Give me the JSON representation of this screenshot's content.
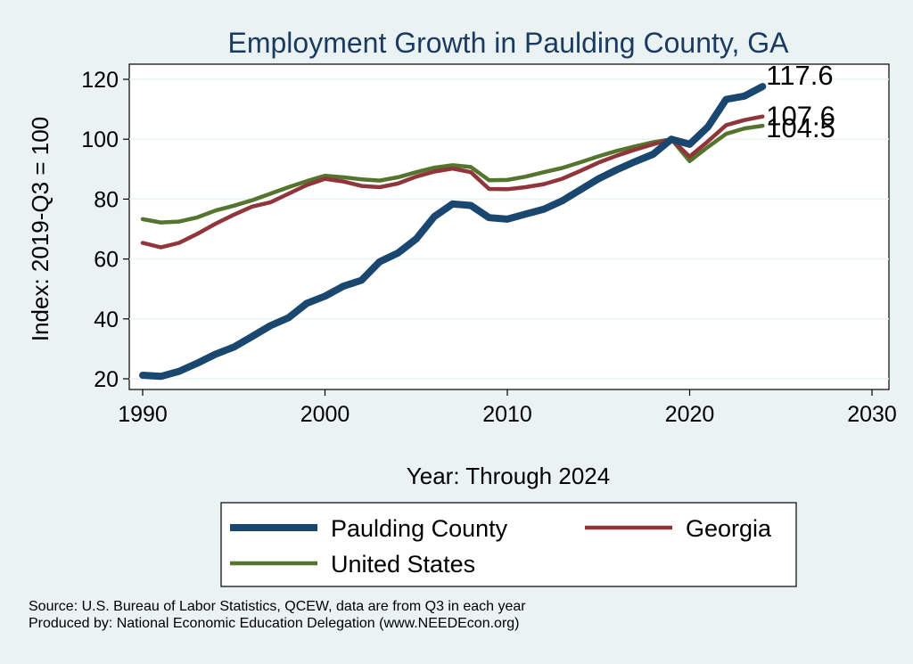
{
  "chart_data": {
    "type": "line",
    "title": "Employment Growth in Paulding County, GA",
    "xlabel": "Year: Through 2024",
    "ylabel": "Index: 2019-Q3 = 100",
    "xlim": [
      1990,
      2030
    ],
    "ylim": [
      18,
      124
    ],
    "xticks": [
      1990,
      2000,
      2010,
      2020,
      2030
    ],
    "yticks": [
      20,
      40,
      60,
      80,
      100,
      120
    ],
    "grid": "horizontal",
    "legend_position": "bottom",
    "x": [
      1990,
      1991,
      1992,
      1993,
      1994,
      1995,
      1996,
      1997,
      1998,
      1999,
      2000,
      2001,
      2002,
      2003,
      2004,
      2005,
      2006,
      2007,
      2008,
      2009,
      2010,
      2011,
      2012,
      2013,
      2014,
      2015,
      2016,
      2017,
      2018,
      2019,
      2020,
      2021,
      2022,
      2023,
      2024
    ],
    "series": [
      {
        "name": "Paulding  County",
        "color": "#1A476F",
        "values": [
          21.2,
          20.8,
          22.5,
          25.2,
          28.2,
          30.6,
          34.1,
          37.7,
          40.4,
          45.2,
          47.6,
          50.9,
          52.9,
          59.1,
          62.0,
          66.7,
          74.2,
          78.4,
          77.9,
          73.8,
          73.3,
          75.0,
          76.6,
          79.4,
          83.1,
          86.8,
          89.8,
          92.5,
          95.0,
          100.0,
          98.3,
          104.1,
          113.3,
          114.4,
          117.6
        ],
        "end_label": "117.6"
      },
      {
        "name": "Georgia",
        "color": "#90353B",
        "values": [
          65.4,
          63.9,
          65.4,
          68.4,
          71.8,
          74.8,
          77.5,
          78.9,
          81.8,
          84.7,
          86.8,
          85.9,
          84.4,
          84.0,
          85.2,
          87.5,
          89.2,
          90.2,
          89.0,
          83.4,
          83.3,
          84.0,
          85.0,
          86.8,
          89.4,
          92.2,
          94.5,
          96.5,
          98.3,
          100.0,
          94.2,
          99.3,
          104.7,
          106.4,
          107.6
        ],
        "end_label": "107.6"
      },
      {
        "name": "United States",
        "color": "#55752F",
        "values": [
          73.3,
          72.2,
          72.5,
          73.9,
          76.2,
          77.8,
          79.6,
          81.8,
          84.0,
          86.0,
          87.8,
          87.3,
          86.6,
          86.2,
          87.3,
          89.0,
          90.5,
          91.3,
          90.7,
          86.3,
          86.4,
          87.5,
          89.0,
          90.4,
          92.3,
          94.3,
          96.1,
          97.6,
          99.0,
          100.0,
          92.7,
          97.4,
          101.8,
          103.6,
          104.5
        ],
        "end_label": "104.5"
      }
    ]
  },
  "source": {
    "line1": "Source: U.S. Bureau of Labor Statistics, QCEW, data are from Q3 in each year",
    "line2": "Produced by: National Economic Education Delegation (www.NEEDEcon.org)"
  }
}
